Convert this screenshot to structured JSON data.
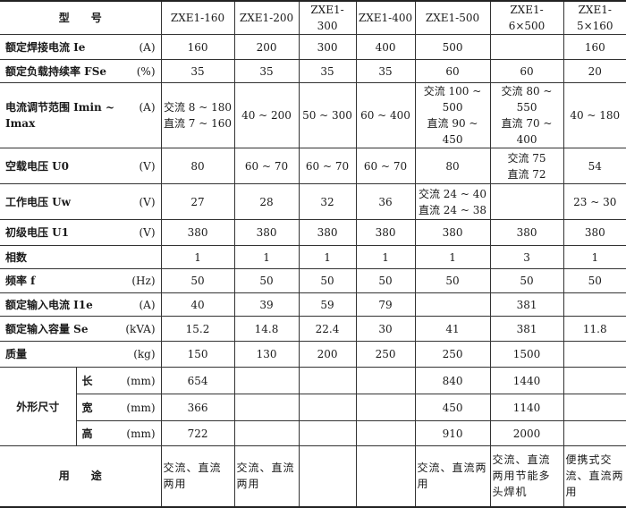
{
  "header": {
    "label": "型　　号",
    "models": [
      "ZXE1-160",
      "ZXE1-200",
      "ZXE1-300",
      "ZXE1-400",
      "ZXE1-500",
      "ZXE1-6×500",
      "ZXE1-5×160"
    ]
  },
  "rows": [
    {
      "label": "额定焊接电流 Ie",
      "unit": "(A)",
      "values": [
        [
          "160"
        ],
        [
          "200"
        ],
        [
          "300"
        ],
        [
          "400"
        ],
        [
          "500"
        ],
        [
          ""
        ],
        [
          "160"
        ]
      ]
    },
    {
      "label": "额定负载持续率 FSe",
      "unit": "(%)",
      "values": [
        [
          "35"
        ],
        [
          "35"
        ],
        [
          "35"
        ],
        [
          "35"
        ],
        [
          "60"
        ],
        [
          "60"
        ],
        [
          "20"
        ]
      ]
    },
    {
      "label": "电流调节范围 Imin ~ Imax",
      "unit": "(A)",
      "values": [
        [
          "交流 8 ~ 180",
          "直流 7 ~ 160"
        ],
        [
          "40 ~ 200"
        ],
        [
          "50 ~ 300"
        ],
        [
          "60 ~ 400"
        ],
        [
          "交流 100 ~ 500",
          "直流 90 ~ 450"
        ],
        [
          "交流 80 ~ 550",
          "直流 70 ~ 400"
        ],
        [
          "40 ~ 180"
        ]
      ]
    },
    {
      "label": "空载电压 U0",
      "unit": "(V)",
      "values": [
        [
          "80"
        ],
        [
          "60 ~ 70"
        ],
        [
          "60 ~ 70"
        ],
        [
          "60 ~ 70"
        ],
        [
          "80"
        ],
        [
          "交流 75",
          "直流 72"
        ],
        [
          "54"
        ]
      ]
    },
    {
      "label": "工作电压 Uw",
      "unit": "(V)",
      "values": [
        [
          "27"
        ],
        [
          "28"
        ],
        [
          "32"
        ],
        [
          "36"
        ],
        [
          "交流 24 ~ 40",
          "直流 24 ~ 38"
        ],
        [
          ""
        ],
        [
          "23 ~ 30"
        ]
      ]
    },
    {
      "label": "初级电压 U1",
      "unit": "(V)",
      "values": [
        [
          "380"
        ],
        [
          "380"
        ],
        [
          "380"
        ],
        [
          "380"
        ],
        [
          "380"
        ],
        [
          "380"
        ],
        [
          "380"
        ]
      ]
    },
    {
      "label": "相数",
      "unit": "",
      "values": [
        [
          "1"
        ],
        [
          "1"
        ],
        [
          "1"
        ],
        [
          "1"
        ],
        [
          "1"
        ],
        [
          "3"
        ],
        [
          "1"
        ]
      ]
    },
    {
      "label": "频率 f",
      "unit": "(Hz)",
      "values": [
        [
          "50"
        ],
        [
          "50"
        ],
        [
          "50"
        ],
        [
          "50"
        ],
        [
          "50"
        ],
        [
          "50"
        ],
        [
          "50"
        ]
      ]
    },
    {
      "label": "额定输入电流 I1e",
      "unit": "(A)",
      "values": [
        [
          "40"
        ],
        [
          "39"
        ],
        [
          "59"
        ],
        [
          "79"
        ],
        [
          ""
        ],
        [
          "381"
        ],
        [
          ""
        ]
      ]
    },
    {
      "label": "额定输入容量 Se",
      "unit": "(kVA)",
      "values": [
        [
          "15.2"
        ],
        [
          "14.8"
        ],
        [
          "22.4"
        ],
        [
          "30"
        ],
        [
          "41"
        ],
        [
          "381"
        ],
        [
          "11.8"
        ]
      ]
    },
    {
      "label": "质量",
      "unit": "(kg)",
      "values": [
        [
          "150"
        ],
        [
          "130"
        ],
        [
          "200"
        ],
        [
          "250"
        ],
        [
          "250"
        ],
        [
          "1500"
        ],
        [
          ""
        ]
      ]
    }
  ],
  "dimensions": {
    "label": "外形尺寸",
    "rows": [
      {
        "label": "长",
        "unit": "(mm)",
        "values": [
          "654",
          "",
          "",
          "",
          "840",
          "1440",
          ""
        ]
      },
      {
        "label": "宽",
        "unit": "(mm)",
        "values": [
          "366",
          "",
          "",
          "",
          "450",
          "1140",
          ""
        ]
      },
      {
        "label": "高",
        "unit": "(mm)",
        "values": [
          "722",
          "",
          "",
          "",
          "910",
          "2000",
          ""
        ]
      }
    ]
  },
  "usage": {
    "label": "用　　途",
    "values": [
      "交流、直流两用",
      "交流、直流两用",
      "",
      "",
      "交流、直流两用",
      "交流、直流两用节能多头焊机",
      "便携式交流、直流两用"
    ]
  }
}
